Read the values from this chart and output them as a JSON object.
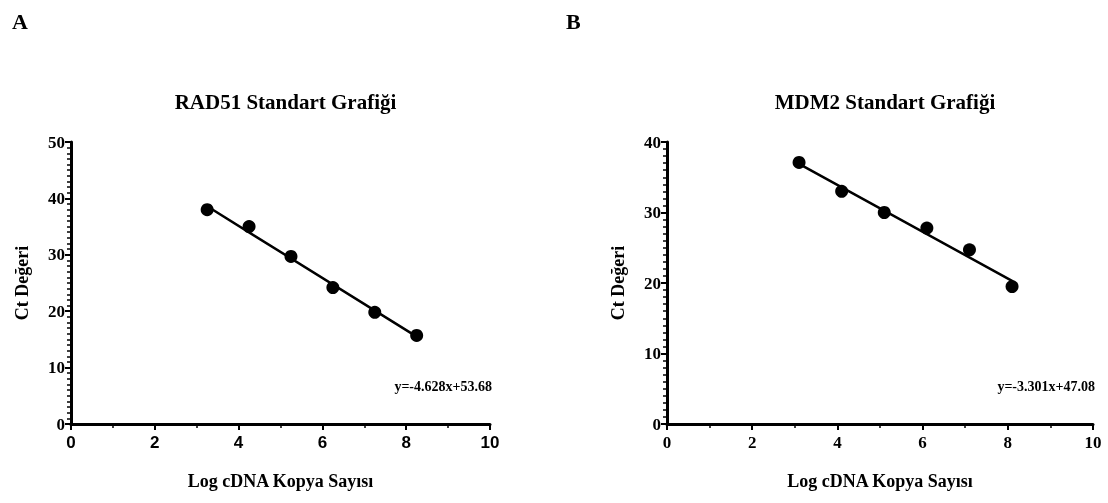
{
  "chart_data": [
    {
      "type": "scatter",
      "title": "RAD51 Standart Grafiği",
      "xlabel": "Log cDNA Kopya Sayısı",
      "ylabel": "Ct Değeri",
      "annotations": [
        "A",
        "y=-4.628x+53.68"
      ],
      "xlim": [
        0,
        10
      ],
      "xticks": [
        0,
        2,
        4,
        6,
        8,
        10
      ],
      "ylim": [
        0,
        50
      ],
      "yticks": [
        0,
        10,
        20,
        30,
        40,
        50
      ],
      "grid": false,
      "series": [
        {
          "color": "#000000",
          "marker": "circle",
          "x": [
            3.25,
            4.25,
            5.25,
            6.25,
            7.25,
            8.25
          ],
          "values": [
            38,
            35,
            29.7,
            24.2,
            19.8,
            15.7
          ]
        },
        {
          "type": "line",
          "color": "#000000",
          "marker": "none",
          "line_style": "solid",
          "x": [
            3.25,
            8.25
          ],
          "values": [
            38.6,
            15.5
          ]
        }
      ]
    },
    {
      "type": "scatter",
      "title": "MDM2 Standart Grafiği",
      "xlabel": "Log cDNA Kopya Sayısı",
      "ylabel": "Ct Değeri",
      "annotations": [
        "B",
        "y=-3.301x+47.08"
      ],
      "xlim": [
        0,
        10
      ],
      "xticks": [
        0,
        2,
        4,
        6,
        8,
        10
      ],
      "ylim": [
        0,
        40
      ],
      "yticks": [
        0,
        10,
        20,
        30,
        40
      ],
      "grid": false,
      "series": [
        {
          "color": "#000000",
          "marker": "circle",
          "x": [
            3.1,
            4.1,
            5.1,
            6.1,
            7.1,
            8.1
          ],
          "values": [
            37.1,
            33,
            30,
            27.8,
            24.7,
            19.5
          ]
        },
        {
          "type": "line",
          "color": "#000000",
          "marker": "none",
          "line_style": "solid",
          "x": [
            3.1,
            8.1
          ],
          "values": [
            36.9,
            20.3
          ]
        }
      ]
    }
  ]
}
